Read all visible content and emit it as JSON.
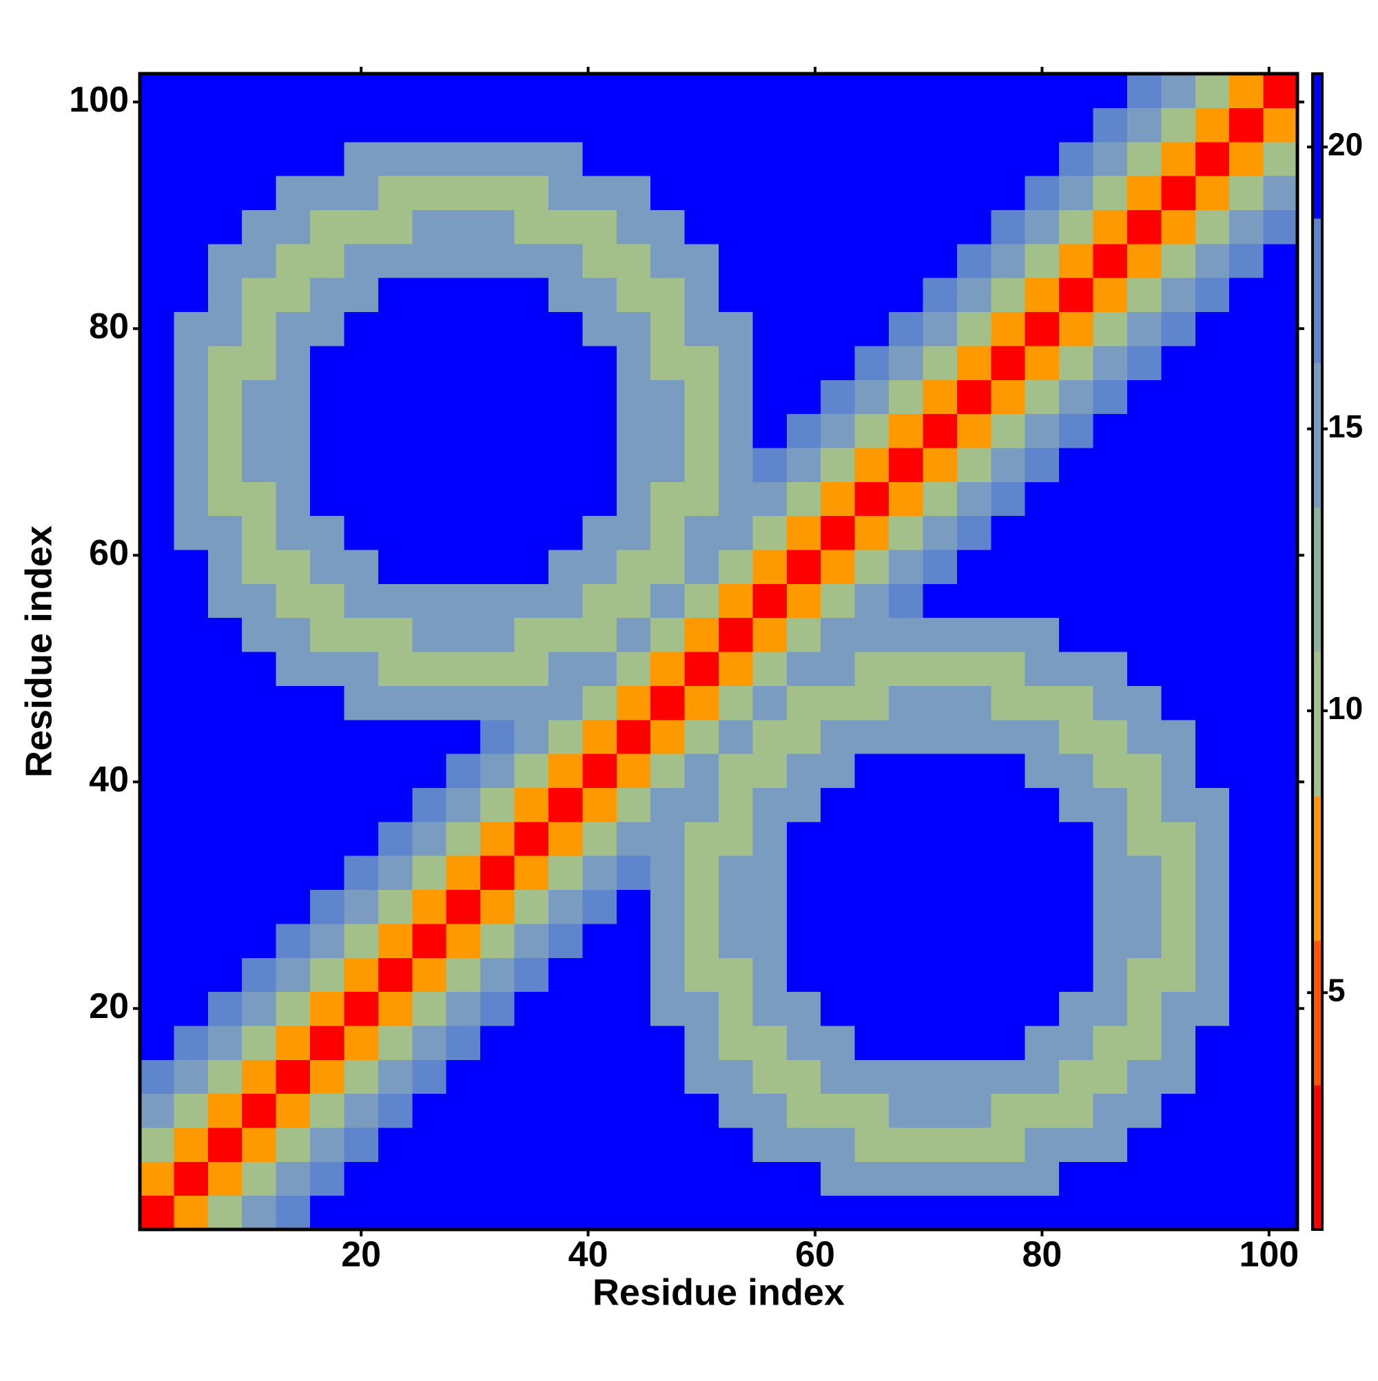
{
  "chart_data": {
    "type": "heatmap",
    "xlabel": "Residue index",
    "ylabel": "Residue index",
    "x": [
      2,
      5,
      8,
      11,
      14,
      17,
      20,
      23,
      26,
      29,
      32,
      35,
      38,
      41,
      44,
      47,
      50,
      53,
      56,
      59,
      62,
      65,
      68,
      71,
      74,
      77,
      80,
      83,
      86,
      89,
      92,
      95,
      98,
      101
    ],
    "y": [
      2,
      5,
      8,
      11,
      14,
      17,
      20,
      23,
      26,
      29,
      32,
      35,
      38,
      41,
      44,
      47,
      50,
      53,
      56,
      59,
      62,
      65,
      68,
      71,
      74,
      77,
      80,
      83,
      86,
      89,
      92,
      95,
      98,
      101
    ],
    "xlim": [
      0.5,
      102.5
    ],
    "ylim": [
      0.5,
      102.5
    ],
    "xticks": [
      20,
      40,
      60,
      80,
      100
    ],
    "yticks": [
      20,
      40,
      60,
      80,
      100
    ],
    "colorbar": {
      "lim": [
        0.8,
        21.3
      ],
      "ticks": [
        5,
        10,
        15,
        20
      ],
      "colors": [
        "#ff0000",
        "#ff5500",
        "#ff9900",
        "#a3bf8a",
        "#8fb09c",
        "#7a9cc0",
        "#5f86cc",
        "#0000ff"
      ]
    },
    "z": [
      [
        2,
        6,
        10,
        14,
        17,
        21,
        21,
        21,
        21,
        21,
        21,
        21,
        21,
        21,
        21,
        21,
        21,
        21,
        21,
        21,
        21,
        21,
        21,
        21,
        21,
        21,
        21,
        21,
        21,
        21,
        21,
        21,
        21,
        21
      ],
      [
        6,
        2,
        6,
        10,
        14,
        17,
        21,
        21,
        21,
        21,
        21,
        21,
        21,
        21,
        21,
        21,
        21,
        21,
        21,
        21,
        15,
        15,
        15,
        15,
        15,
        15,
        15,
        21,
        21,
        21,
        21,
        21,
        21,
        21
      ],
      [
        10,
        6,
        2,
        6,
        10,
        14,
        17,
        21,
        21,
        21,
        21,
        21,
        21,
        21,
        21,
        21,
        21,
        21,
        15,
        15,
        15,
        11,
        11,
        11,
        11,
        11,
        15,
        15,
        15,
        21,
        21,
        21,
        21,
        21
      ],
      [
        14,
        10,
        6,
        2,
        6,
        10,
        14,
        17,
        21,
        21,
        21,
        21,
        21,
        21,
        21,
        21,
        21,
        15,
        15,
        11,
        11,
        11,
        15,
        15,
        15,
        11,
        11,
        11,
        15,
        15,
        21,
        21,
        21,
        21
      ],
      [
        17,
        14,
        10,
        6,
        2,
        6,
        10,
        14,
        17,
        21,
        21,
        21,
        21,
        21,
        21,
        21,
        15,
        15,
        11,
        11,
        15,
        15,
        15,
        15,
        15,
        15,
        15,
        11,
        11,
        15,
        15,
        21,
        21,
        21
      ],
      [
        21,
        17,
        14,
        10,
        6,
        2,
        6,
        10,
        14,
        17,
        21,
        21,
        21,
        21,
        21,
        21,
        15,
        11,
        11,
        15,
        15,
        21,
        21,
        21,
        21,
        21,
        15,
        15,
        11,
        11,
        15,
        21,
        21,
        21
      ],
      [
        21,
        21,
        17,
        14,
        10,
        6,
        2,
        6,
        10,
        14,
        17,
        21,
        21,
        21,
        21,
        15,
        15,
        11,
        15,
        15,
        21,
        21,
        21,
        21,
        21,
        21,
        21,
        15,
        15,
        11,
        15,
        15,
        21,
        21
      ],
      [
        21,
        21,
        21,
        17,
        14,
        10,
        6,
        2,
        6,
        10,
        14,
        17,
        21,
        21,
        21,
        15,
        11,
        11,
        15,
        21,
        21,
        21,
        21,
        21,
        21,
        21,
        21,
        21,
        15,
        11,
        11,
        15,
        21,
        21
      ],
      [
        21,
        21,
        21,
        21,
        17,
        14,
        10,
        6,
        2,
        6,
        10,
        14,
        17,
        21,
        21,
        15,
        11,
        15,
        15,
        21,
        21,
        21,
        21,
        21,
        21,
        21,
        21,
        21,
        15,
        15,
        11,
        15,
        21,
        21
      ],
      [
        21,
        21,
        21,
        21,
        21,
        17,
        14,
        10,
        6,
        2,
        6,
        10,
        14,
        17,
        21,
        15,
        11,
        15,
        15,
        21,
        21,
        21,
        21,
        21,
        21,
        21,
        21,
        21,
        15,
        15,
        11,
        15,
        21,
        21
      ],
      [
        21,
        21,
        21,
        21,
        21,
        21,
        17,
        14,
        10,
        6,
        2,
        6,
        10,
        14,
        17,
        15,
        11,
        15,
        15,
        21,
        21,
        21,
        21,
        21,
        21,
        21,
        21,
        21,
        15,
        15,
        11,
        15,
        21,
        21
      ],
      [
        21,
        21,
        21,
        21,
        21,
        21,
        21,
        17,
        14,
        10,
        6,
        2,
        6,
        10,
        14,
        15,
        11,
        11,
        15,
        21,
        21,
        21,
        21,
        21,
        21,
        21,
        21,
        21,
        15,
        11,
        11,
        15,
        21,
        21
      ],
      [
        21,
        21,
        21,
        21,
        21,
        21,
        21,
        21,
        17,
        14,
        10,
        6,
        2,
        6,
        10,
        14,
        15,
        11,
        15,
        15,
        21,
        21,
        21,
        21,
        21,
        21,
        21,
        15,
        15,
        11,
        15,
        15,
        21,
        21
      ],
      [
        21,
        21,
        21,
        21,
        21,
        21,
        21,
        21,
        21,
        17,
        14,
        10,
        6,
        2,
        6,
        10,
        14,
        11,
        11,
        15,
        15,
        21,
        21,
        21,
        21,
        21,
        15,
        15,
        11,
        11,
        15,
        21,
        21,
        21
      ],
      [
        21,
        21,
        21,
        21,
        21,
        21,
        21,
        21,
        21,
        21,
        17,
        14,
        10,
        6,
        2,
        6,
        10,
        14,
        11,
        11,
        15,
        15,
        15,
        15,
        15,
        15,
        15,
        11,
        11,
        15,
        15,
        21,
        21,
        21
      ],
      [
        21,
        21,
        21,
        21,
        21,
        21,
        15,
        15,
        15,
        15,
        15,
        15,
        14,
        10,
        6,
        2,
        6,
        10,
        14,
        11,
        11,
        11,
        15,
        15,
        15,
        11,
        11,
        11,
        15,
        15,
        21,
        21,
        21,
        21
      ],
      [
        21,
        21,
        21,
        21,
        15,
        15,
        15,
        11,
        11,
        11,
        11,
        11,
        15,
        14,
        10,
        6,
        2,
        6,
        10,
        14,
        15,
        11,
        11,
        11,
        11,
        11,
        15,
        15,
        15,
        21,
        21,
        21,
        21,
        21
      ],
      [
        21,
        21,
        21,
        15,
        15,
        11,
        11,
        11,
        15,
        15,
        15,
        11,
        11,
        11,
        14,
        10,
        6,
        2,
        6,
        10,
        14,
        15,
        15,
        15,
        15,
        15,
        15,
        21,
        21,
        21,
        21,
        21,
        21,
        21
      ],
      [
        21,
        21,
        15,
        15,
        11,
        11,
        15,
        15,
        15,
        15,
        15,
        15,
        15,
        11,
        11,
        14,
        10,
        6,
        2,
        6,
        10,
        14,
        17,
        21,
        21,
        21,
        21,
        21,
        21,
        21,
        21,
        21,
        21,
        21
      ],
      [
        21,
        21,
        15,
        11,
        11,
        15,
        15,
        21,
        21,
        21,
        21,
        21,
        15,
        15,
        11,
        11,
        14,
        10,
        6,
        2,
        6,
        10,
        14,
        17,
        21,
        21,
        21,
        21,
        21,
        21,
        21,
        21,
        21,
        21
      ],
      [
        21,
        15,
        15,
        11,
        15,
        15,
        21,
        21,
        21,
        21,
        21,
        21,
        21,
        15,
        15,
        11,
        15,
        14,
        10,
        6,
        2,
        6,
        10,
        14,
        17,
        21,
        21,
        21,
        21,
        21,
        21,
        21,
        21,
        21
      ],
      [
        21,
        15,
        11,
        11,
        15,
        21,
        21,
        21,
        21,
        21,
        21,
        21,
        21,
        21,
        15,
        11,
        11,
        15,
        14,
        10,
        6,
        2,
        6,
        10,
        14,
        17,
        21,
        21,
        21,
        21,
        21,
        21,
        21,
        21
      ],
      [
        21,
        15,
        11,
        15,
        15,
        21,
        21,
        21,
        21,
        21,
        21,
        21,
        21,
        21,
        15,
        15,
        11,
        15,
        17,
        14,
        10,
        6,
        2,
        6,
        10,
        14,
        17,
        21,
        21,
        21,
        21,
        21,
        21,
        21
      ],
      [
        21,
        15,
        11,
        15,
        15,
        21,
        21,
        21,
        21,
        21,
        21,
        21,
        21,
        21,
        15,
        15,
        11,
        15,
        21,
        17,
        14,
        10,
        6,
        2,
        6,
        10,
        14,
        17,
        21,
        21,
        21,
        21,
        21,
        21
      ],
      [
        21,
        15,
        11,
        15,
        15,
        21,
        21,
        21,
        21,
        21,
        21,
        21,
        21,
        21,
        15,
        15,
        11,
        15,
        21,
        21,
        17,
        14,
        10,
        6,
        2,
        6,
        10,
        14,
        17,
        21,
        21,
        21,
        21,
        21
      ],
      [
        21,
        15,
        11,
        11,
        15,
        21,
        21,
        21,
        21,
        21,
        21,
        21,
        21,
        21,
        15,
        11,
        11,
        15,
        21,
        21,
        21,
        17,
        14,
        10,
        6,
        2,
        6,
        10,
        14,
        17,
        21,
        21,
        21,
        21
      ],
      [
        21,
        15,
        15,
        11,
        15,
        15,
        21,
        21,
        21,
        21,
        21,
        21,
        21,
        15,
        15,
        11,
        15,
        15,
        21,
        21,
        21,
        21,
        17,
        14,
        10,
        6,
        2,
        6,
        10,
        14,
        17,
        21,
        21,
        21
      ],
      [
        21,
        21,
        15,
        11,
        11,
        15,
        15,
        21,
        21,
        21,
        21,
        21,
        15,
        15,
        11,
        11,
        15,
        21,
        21,
        21,
        21,
        21,
        21,
        17,
        14,
        10,
        6,
        2,
        6,
        10,
        14,
        17,
        21,
        21
      ],
      [
        21,
        21,
        15,
        15,
        11,
        11,
        15,
        15,
        15,
        15,
        15,
        15,
        15,
        11,
        11,
        15,
        15,
        21,
        21,
        21,
        21,
        21,
        21,
        21,
        17,
        14,
        10,
        6,
        2,
        6,
        10,
        14,
        17,
        21
      ],
      [
        21,
        21,
        21,
        15,
        15,
        11,
        11,
        11,
        15,
        15,
        15,
        11,
        11,
        11,
        15,
        15,
        21,
        21,
        21,
        21,
        21,
        21,
        21,
        21,
        21,
        17,
        14,
        10,
        6,
        2,
        6,
        10,
        14,
        17
      ],
      [
        21,
        21,
        21,
        21,
        15,
        15,
        15,
        11,
        11,
        11,
        11,
        11,
        15,
        15,
        15,
        21,
        21,
        21,
        21,
        21,
        21,
        21,
        21,
        21,
        21,
        21,
        17,
        14,
        10,
        6,
        2,
        6,
        10,
        14
      ],
      [
        21,
        21,
        21,
        21,
        21,
        21,
        15,
        15,
        15,
        15,
        15,
        15,
        15,
        21,
        21,
        21,
        21,
        21,
        21,
        21,
        21,
        21,
        21,
        21,
        21,
        21,
        21,
        17,
        14,
        10,
        6,
        2,
        6,
        10
      ],
      [
        21,
        21,
        21,
        21,
        21,
        21,
        21,
        21,
        21,
        21,
        21,
        21,
        21,
        21,
        21,
        21,
        21,
        21,
        21,
        21,
        21,
        21,
        21,
        21,
        21,
        21,
        21,
        21,
        17,
        14,
        10,
        6,
        2,
        6
      ],
      [
        21,
        21,
        21,
        21,
        21,
        21,
        21,
        21,
        21,
        21,
        21,
        21,
        21,
        21,
        21,
        21,
        21,
        21,
        21,
        21,
        21,
        21,
        21,
        21,
        21,
        21,
        21,
        21,
        21,
        17,
        14,
        10,
        6,
        2
      ]
    ]
  }
}
